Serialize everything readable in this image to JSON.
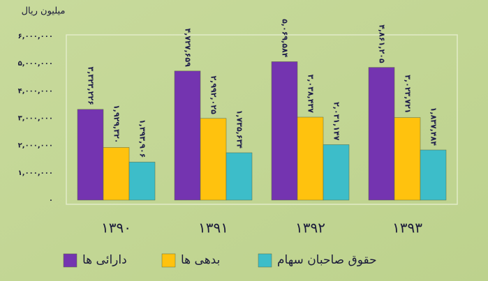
{
  "chart_data": {
    "type": "bar",
    "title": "میلیون ریال",
    "categories": [
      "۱۳۹۰",
      "۱۳۹۱",
      "۱۳۹۲",
      "۱۳۹۳"
    ],
    "series": [
      {
        "name": "دارائی ها",
        "color": "#7434b0",
        "values": [
          3323226,
          4727659,
          5069584,
          4861205
        ],
        "value_labels": [
          "۳,۳۲۳,۲۲۶",
          "۴,۷۲۷,۶۵۹",
          "۵,۰۶۹,۵۸۴",
          "۴,۸۶۱,۲۰۵"
        ]
      },
      {
        "name": "بدهی ها",
        "color": "#ffc20e",
        "values": [
          1929320,
          2992025,
          3038437,
          3023721
        ],
        "value_labels": [
          "۱,۹۲۹,۳۲۰",
          "۲,۹۹۲,۰۲۵",
          "۳,۰۳۸,۴۳۷",
          "۳,۰۲۳,۷۲۱"
        ]
      },
      {
        "name": "حقوق صاحبان سهام",
        "color": "#3dbdc9",
        "values": [
          1393906,
          1735634,
          2031147,
          1837484
        ],
        "value_labels": [
          "۱,۳۹۳,۹۰۶",
          "۱,۷۳۵,۶۳۴",
          "۲,۰۳۱,۱۴۷",
          "۱,۸۳۷,۴۸۴"
        ]
      }
    ],
    "ylim": [
      0,
      6000000
    ],
    "yticks": [
      {
        "value": 0,
        "label": "۰"
      },
      {
        "value": 1000000,
        "label": "۱,۰۰۰,۰۰۰"
      },
      {
        "value": 2000000,
        "label": "۲,۰۰۰,۰۰۰"
      },
      {
        "value": 3000000,
        "label": "۳,۰۰۰,۰۰۰"
      },
      {
        "value": 4000000,
        "label": "۴,۰۰۰,۰۰۰"
      },
      {
        "value": 5000000,
        "label": "۵,۰۰۰,۰۰۰"
      },
      {
        "value": 6000000,
        "label": "۶,۰۰۰,۰۰۰"
      }
    ],
    "grid": false
  }
}
